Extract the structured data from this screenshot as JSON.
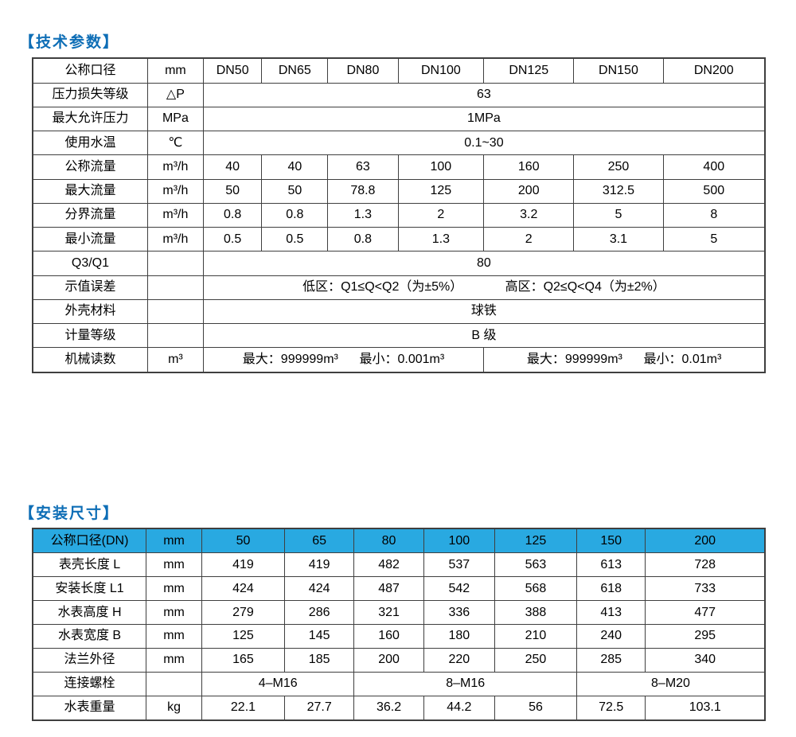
{
  "colors": {
    "title_blue": "#0e6eb6",
    "table2_header_bg": "#29a9e1",
    "border": "#3f3f3f",
    "text": "#000000"
  },
  "tech_params": {
    "title": "【技术参数】",
    "col_widths_pct": [
      15.7,
      7.6,
      8.0,
      9.0,
      9.6,
      11.7,
      12.3,
      12.2,
      13.9
    ],
    "rows": [
      {
        "cells": [
          {
            "t": "公称口径"
          },
          {
            "t": "mm"
          },
          {
            "t": "DN50"
          },
          {
            "t": "DN65"
          },
          {
            "t": "DN80"
          },
          {
            "t": "DN100"
          },
          {
            "t": "DN125"
          },
          {
            "t": "DN150"
          },
          {
            "t": "DN200"
          }
        ]
      },
      {
        "cells": [
          {
            "t": "压力损失等级"
          },
          {
            "t": "△P"
          },
          {
            "t": "63",
            "span": 7
          }
        ]
      },
      {
        "cells": [
          {
            "t": "最大允许压力"
          },
          {
            "t": "MPa"
          },
          {
            "t": "1MPa",
            "span": 7
          }
        ]
      },
      {
        "cells": [
          {
            "t": "使用水温"
          },
          {
            "t": "℃"
          },
          {
            "t": "0.1~30",
            "span": 7
          }
        ]
      },
      {
        "cells": [
          {
            "t": "公称流量"
          },
          {
            "t": "m³/h"
          },
          {
            "t": "40"
          },
          {
            "t": "40"
          },
          {
            "t": "63"
          },
          {
            "t": "100"
          },
          {
            "t": "160"
          },
          {
            "t": "250"
          },
          {
            "t": "400"
          }
        ]
      },
      {
        "cells": [
          {
            "t": "最大流量"
          },
          {
            "t": "m³/h"
          },
          {
            "t": "50"
          },
          {
            "t": "50"
          },
          {
            "t": "78.8"
          },
          {
            "t": "125"
          },
          {
            "t": "200"
          },
          {
            "t": "312.5"
          },
          {
            "t": "500"
          }
        ]
      },
      {
        "cells": [
          {
            "t": "分界流量"
          },
          {
            "t": "m³/h"
          },
          {
            "t": "0.8"
          },
          {
            "t": "0.8"
          },
          {
            "t": "1.3"
          },
          {
            "t": "2"
          },
          {
            "t": "3.2"
          },
          {
            "t": "5"
          },
          {
            "t": "8"
          }
        ]
      },
      {
        "cells": [
          {
            "t": "最小流量"
          },
          {
            "t": "m³/h"
          },
          {
            "t": "0.5"
          },
          {
            "t": "0.5"
          },
          {
            "t": "0.8"
          },
          {
            "t": "1.3"
          },
          {
            "t": "2"
          },
          {
            "t": "3.1"
          },
          {
            "t": "5"
          }
        ]
      },
      {
        "cells": [
          {
            "t": "Q3/Q1"
          },
          {
            "t": ""
          },
          {
            "t": "80",
            "span": 7
          }
        ]
      },
      {
        "cells": [
          {
            "t": "示值误差"
          },
          {
            "t": ""
          },
          {
            "t": "低区：Q1≤Q<Q2（为±5%）            高区：Q2≤Q<Q4（为±2%）",
            "span": 7
          }
        ]
      },
      {
        "cells": [
          {
            "t": "外壳材料"
          },
          {
            "t": ""
          },
          {
            "t": "球铁",
            "span": 7
          }
        ]
      },
      {
        "cells": [
          {
            "t": "计量等级"
          },
          {
            "t": ""
          },
          {
            "t": "B 级",
            "span": 7
          }
        ]
      },
      {
        "cells": [
          {
            "t": "机械读数"
          },
          {
            "t": "m³"
          },
          {
            "t": "最大：999999m³      最小：0.001m³",
            "span": 4
          },
          {
            "t": "最大：999999m³      最小：0.01m³",
            "span": 3
          }
        ]
      }
    ]
  },
  "install_dims": {
    "title": "【安装尺寸】",
    "col_widths_pct": [
      15.5,
      7.6,
      11.3,
      9.5,
      9.5,
      9.7,
      11.2,
      9.4,
      16.3
    ],
    "rows": [
      {
        "header": true,
        "cells": [
          {
            "t": "公称口径(DN)"
          },
          {
            "t": "mm"
          },
          {
            "t": "50"
          },
          {
            "t": "65"
          },
          {
            "t": "80"
          },
          {
            "t": "100"
          },
          {
            "t": "125"
          },
          {
            "t": "150"
          },
          {
            "t": "200"
          }
        ]
      },
      {
        "cells": [
          {
            "t": "表壳长度 L"
          },
          {
            "t": "mm"
          },
          {
            "t": "419"
          },
          {
            "t": "419"
          },
          {
            "t": "482"
          },
          {
            "t": "537"
          },
          {
            "t": "563"
          },
          {
            "t": "613"
          },
          {
            "t": "728"
          }
        ]
      },
      {
        "cells": [
          {
            "t": "安装长度 L1"
          },
          {
            "t": "mm"
          },
          {
            "t": "424"
          },
          {
            "t": "424"
          },
          {
            "t": "487"
          },
          {
            "t": "542"
          },
          {
            "t": "568"
          },
          {
            "t": "618"
          },
          {
            "t": "733"
          }
        ]
      },
      {
        "cells": [
          {
            "t": "水表高度 H"
          },
          {
            "t": "mm"
          },
          {
            "t": "279"
          },
          {
            "t": "286"
          },
          {
            "t": "321"
          },
          {
            "t": "336"
          },
          {
            "t": "388"
          },
          {
            "t": "413"
          },
          {
            "t": "477"
          }
        ]
      },
      {
        "cells": [
          {
            "t": "水表宽度 B"
          },
          {
            "t": "mm"
          },
          {
            "t": "125"
          },
          {
            "t": "145"
          },
          {
            "t": "160"
          },
          {
            "t": "180"
          },
          {
            "t": "210"
          },
          {
            "t": "240"
          },
          {
            "t": "295"
          }
        ]
      },
      {
        "cells": [
          {
            "t": "法兰外径"
          },
          {
            "t": "mm"
          },
          {
            "t": "165"
          },
          {
            "t": "185"
          },
          {
            "t": "200"
          },
          {
            "t": "220"
          },
          {
            "t": "250"
          },
          {
            "t": "285"
          },
          {
            "t": "340"
          }
        ]
      },
      {
        "cells": [
          {
            "t": "连接螺栓"
          },
          {
            "t": ""
          },
          {
            "t": "4–M16",
            "span": 2
          },
          {
            "t": "8–M16",
            "span": 3
          },
          {
            "t": "8–M20",
            "span": 2
          }
        ]
      },
      {
        "cells": [
          {
            "t": "水表重量"
          },
          {
            "t": "kg"
          },
          {
            "t": "22.1"
          },
          {
            "t": "27.7"
          },
          {
            "t": "36.2"
          },
          {
            "t": "44.2"
          },
          {
            "t": "56"
          },
          {
            "t": "72.5"
          },
          {
            "t": "103.1"
          }
        ]
      }
    ]
  }
}
